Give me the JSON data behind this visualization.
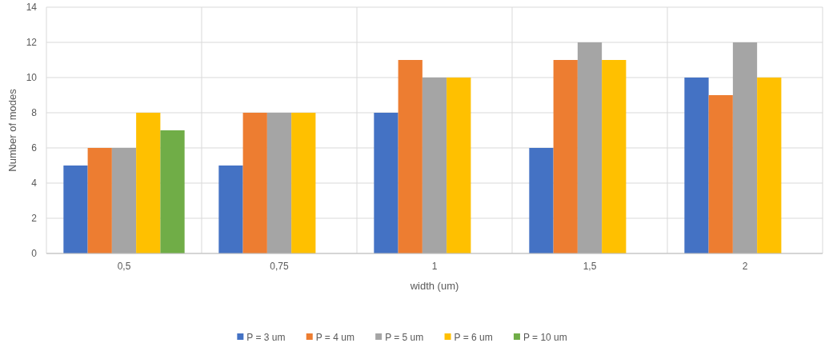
{
  "chart_data": {
    "type": "bar",
    "xlabel": "width (um)",
    "ylabel": "Number of modes",
    "categories": [
      "0,5",
      "0,75",
      "1",
      "1,5",
      "2"
    ],
    "series": [
      {
        "name": "P = 3 um",
        "color": "#4472c4",
        "values": [
          5,
          5,
          8,
          6,
          10
        ]
      },
      {
        "name": "P = 4 um",
        "color": "#ed7d31",
        "values": [
          6,
          8,
          11,
          11,
          9
        ]
      },
      {
        "name": "P = 5 um",
        "color": "#a5a5a5",
        "values": [
          6,
          8,
          10,
          12,
          12
        ]
      },
      {
        "name": "P = 6 um",
        "color": "#ffc000",
        "values": [
          8,
          8,
          10,
          11,
          10
        ]
      },
      {
        "name": "P = 10 um",
        "color": "#70ad47",
        "values": [
          7,
          null,
          null,
          null,
          null
        ]
      }
    ],
    "ylim": [
      0,
      14
    ],
    "yticks": [
      0,
      2,
      4,
      6,
      8,
      10,
      12,
      14
    ],
    "grid": true,
    "legend": "bottom"
  }
}
